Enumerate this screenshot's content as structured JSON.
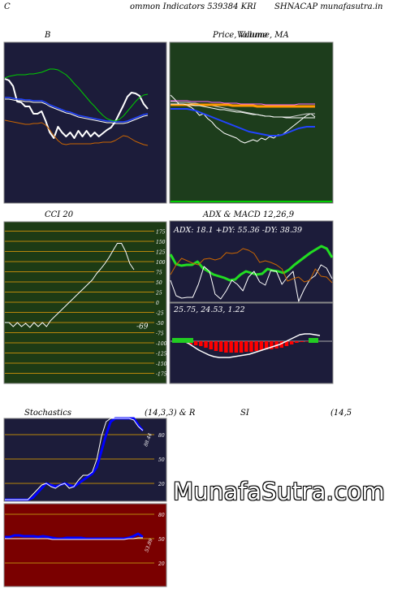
{
  "header": {
    "left": "C",
    "center": "ommon  Indicators 539384  KRI",
    "right": "SHNACAP munafasutra.in"
  },
  "colors": {
    "navy": "#1c1c3a",
    "green_panel": "#1d3d1c",
    "cci_panel": "#1d3b15",
    "rsi_panel": "#7a0000"
  },
  "chart_data": [
    {
      "id": "bollinger",
      "type": "line",
      "title": "B",
      "series": [
        {
          "color": "#ffffff",
          "values": [
            97,
            99,
            106,
            125,
            126,
            131,
            131,
            140,
            140,
            137,
            149,
            163,
            170,
            156,
            163,
            168,
            163,
            170,
            161,
            168,
            161,
            168,
            163,
            168,
            164,
            160,
            157,
            150,
            140,
            130,
            119,
            114,
            115,
            118,
            128,
            134
          ]
        },
        {
          "color": "#2244ff",
          "values": [
            120,
            120,
            121,
            122,
            122,
            123,
            123,
            124,
            124,
            124,
            126,
            129,
            131,
            133,
            135,
            137,
            138,
            140,
            142,
            143,
            144,
            145,
            146,
            147,
            148,
            149,
            149,
            150,
            150,
            150,
            149,
            147,
            145,
            143,
            141,
            140
          ]
        },
        {
          "color": "#ffffff",
          "values": [
            122,
            122,
            123,
            124,
            124,
            125,
            125,
            126,
            126,
            126,
            128,
            131,
            133,
            135,
            137,
            139,
            140,
            142,
            144,
            145,
            146,
            147,
            148,
            149,
            150,
            151,
            151,
            152,
            152,
            152,
            151,
            149,
            147,
            145,
            143,
            142
          ]
        },
        {
          "color": "#00cc00",
          "values": [
            96,
            94,
            93,
            92,
            92,
            92,
            91,
            91,
            90,
            89,
            87,
            85,
            85,
            86,
            89,
            92,
            97,
            103,
            108,
            114,
            120,
            126,
            131,
            137,
            142,
            146,
            148,
            149,
            147,
            143,
            137,
            131,
            125,
            120,
            117,
            116
          ]
        },
        {
          "color": "#cc6600",
          "values": [
            148,
            149,
            150,
            151,
            152,
            153,
            153,
            152,
            152,
            151,
            154,
            160,
            167,
            173,
            177,
            178,
            177,
            177,
            177,
            177,
            177,
            177,
            176,
            176,
            175,
            175,
            175,
            173,
            170,
            167,
            168,
            171,
            174,
            176,
            178,
            179
          ]
        }
      ]
    },
    {
      "id": "price",
      "type": "line",
      "title": "Price, Volume, MA",
      "legend": "Volume",
      "series": [
        {
          "color": "#ffffff",
          "values": [
            117,
            122,
            128,
            130,
            130,
            132,
            136,
            142,
            140,
            146,
            150,
            156,
            160,
            164,
            166,
            168,
            170,
            174,
            176,
            174,
            172,
            174,
            170,
            172,
            168,
            170,
            166,
            166,
            162,
            158,
            154,
            150,
            146,
            142,
            140,
            144
          ]
        },
        {
          "color": "#2244ff",
          "values": [
            134,
            134,
            134,
            134,
            134,
            135,
            136,
            138,
            140,
            142,
            144,
            146,
            148,
            150,
            152,
            154,
            156,
            158,
            160,
            162,
            163,
            164,
            165,
            166,
            167,
            167,
            167,
            166,
            164,
            162,
            160,
            158,
            157,
            156,
            156,
            156
          ]
        },
        {
          "color": "#cccccc",
          "values": [
            125,
            125,
            126,
            126,
            126,
            127,
            127,
            128,
            128,
            129,
            130,
            131,
            132,
            133,
            134,
            135,
            136,
            137,
            138,
            139,
            140,
            141,
            142,
            143,
            143,
            144,
            144,
            144,
            144,
            144,
            143,
            142,
            141,
            140,
            140,
            140
          ]
        },
        {
          "color": "#ff9900",
          "values": [
            129,
            129,
            129,
            129,
            129,
            129,
            129,
            129,
            129,
            129,
            129,
            129,
            129,
            129,
            129,
            130,
            130,
            130,
            130,
            130,
            130,
            131,
            131,
            131,
            131,
            131,
            131,
            131,
            131,
            131,
            131,
            131,
            131,
            131,
            131,
            131
          ]
        },
        {
          "color": "#ff66ff",
          "values": [
            124,
            124,
            124,
            124,
            124,
            125,
            125,
            125,
            125,
            125,
            126,
            126,
            126,
            127,
            127,
            127,
            127,
            128,
            128,
            128,
            128,
            128,
            128,
            129,
            129,
            129,
            129,
            129,
            129,
            129,
            129,
            128,
            128,
            128,
            128,
            128
          ]
        },
        {
          "color": "#ffffff",
          "values": [
            128,
            128,
            128,
            128,
            129,
            129,
            130,
            130,
            131,
            132,
            133,
            134,
            135,
            135,
            136,
            137,
            138,
            138,
            139,
            140,
            141,
            141,
            142,
            143,
            143,
            144,
            144,
            144,
            145,
            145,
            145,
            145,
            145,
            145,
            145,
            145
          ]
        }
      ]
    },
    {
      "id": "cci",
      "type": "line",
      "title": "CCI 20",
      "value_label": "-69",
      "yticks": [
        "175",
        "150",
        "125",
        "100",
        "75",
        "50",
        "25",
        "0",
        "-25",
        "-50",
        "-75",
        "-100",
        "-125",
        "-150",
        "-175"
      ],
      "series": [
        {
          "color": "#ffffff",
          "values": [
            -50,
            -50,
            -60,
            -50,
            -60,
            -52,
            -62,
            -50,
            -60,
            -50,
            -60,
            -45,
            -35,
            -25,
            -15,
            -5,
            5,
            15,
            25,
            35,
            45,
            55,
            70,
            82,
            95,
            110,
            128,
            145,
            145,
            125,
            95,
            80
          ]
        }
      ]
    },
    {
      "id": "adx",
      "type": "line",
      "title": "ADX  & MACD 12,26,9",
      "readout": "ADX: 18.1 +DY: 55.36  -DY: 38.39",
      "series": [
        {
          "color": "#22dd22",
          "values": [
            313,
            325,
            327,
            326,
            326,
            322,
            330,
            334,
            338,
            340,
            342,
            345,
            344,
            338,
            334,
            336,
            338,
            337,
            331,
            333,
            334,
            336,
            332,
            326,
            321,
            316,
            311,
            307,
            303,
            306,
            317
          ]
        },
        {
          "color": "#ffffff",
          "values": [
            345,
            364,
            367,
            366,
            366,
            350,
            328,
            334,
            362,
            368,
            358,
            345,
            350,
            358,
            341,
            334,
            347,
            351,
            333,
            334,
            350,
            341,
            334,
            371,
            356,
            344,
            339,
            326,
            330,
            343
          ]
        },
        {
          "color": "#cc6600",
          "values": [
            338,
            326,
            318,
            321,
            324,
            326,
            319,
            318,
            320,
            318,
            311,
            312,
            311,
            306,
            308,
            312,
            323,
            321,
            323,
            326,
            331,
            346,
            343,
            341,
            347,
            345,
            331,
            340,
            341,
            348
          ]
        }
      ]
    },
    {
      "id": "macd",
      "type": "bar",
      "readout": "25.75,  24.53,  1.22",
      "series": [
        {
          "color": "#ff0000",
          "values": [
            1,
            1,
            2,
            4,
            5,
            6,
            8,
            10,
            12,
            13,
            14,
            14,
            14,
            14,
            13,
            13,
            12,
            11,
            10,
            10,
            9,
            8,
            6,
            4,
            2,
            1,
            0,
            0,
            0
          ]
        },
        {
          "color": "#ffffff",
          "values": [
            418,
            419,
            420,
            423,
            427,
            431,
            434,
            437,
            439,
            440,
            440,
            440,
            439,
            438,
            437,
            436,
            434,
            432,
            430,
            428,
            426,
            424,
            421,
            418,
            415,
            412,
            411,
            411,
            412,
            413
          ]
        }
      ]
    },
    {
      "id": "stochastics",
      "type": "line",
      "title": "Stochastics",
      "params": "(14,3,3) & R",
      "value_label": "88.44",
      "yticks": [
        "80",
        "50",
        "20"
      ],
      "series": [
        {
          "color": "#0000ff",
          "values": [
            0,
            0,
            0,
            0,
            0,
            0,
            2,
            8,
            14,
            20,
            18,
            16,
            18,
            20,
            18,
            16,
            20,
            24,
            28,
            32,
            40,
            60,
            80,
            96,
            100,
            100,
            100,
            100,
            100,
            92,
            85
          ]
        },
        {
          "color": "#ffffff",
          "values": [
            0,
            0,
            0,
            0,
            0,
            0,
            6,
            12,
            18,
            20,
            16,
            14,
            18,
            20,
            14,
            16,
            24,
            30,
            30,
            34,
            50,
            78,
            96,
            100,
            100,
            100,
            100,
            100,
            98,
            90,
            85
          ]
        }
      ]
    },
    {
      "id": "rsi",
      "type": "line",
      "title": "SI",
      "params": "(14,5",
      "value_label": "53.89",
      "yticks": [
        "80",
        "50",
        "20"
      ],
      "series": [
        {
          "color": "#0000ff",
          "values": [
            52,
            52,
            54,
            54,
            53,
            53,
            53,
            52,
            53,
            52,
            51,
            50,
            50,
            51,
            51,
            51,
            51,
            50,
            50,
            50,
            50,
            50,
            50,
            50,
            50,
            50,
            51,
            53,
            56,
            52
          ]
        },
        {
          "color": "#ffffff",
          "values": [
            50,
            50,
            50,
            50,
            50,
            50,
            50,
            50,
            50,
            50,
            49,
            49,
            49,
            49,
            49,
            49,
            49,
            49,
            49,
            49,
            49,
            49,
            49,
            49,
            49,
            49,
            50,
            50,
            51,
            51
          ]
        }
      ]
    }
  ],
  "watermark": "MunafaSutra.com"
}
